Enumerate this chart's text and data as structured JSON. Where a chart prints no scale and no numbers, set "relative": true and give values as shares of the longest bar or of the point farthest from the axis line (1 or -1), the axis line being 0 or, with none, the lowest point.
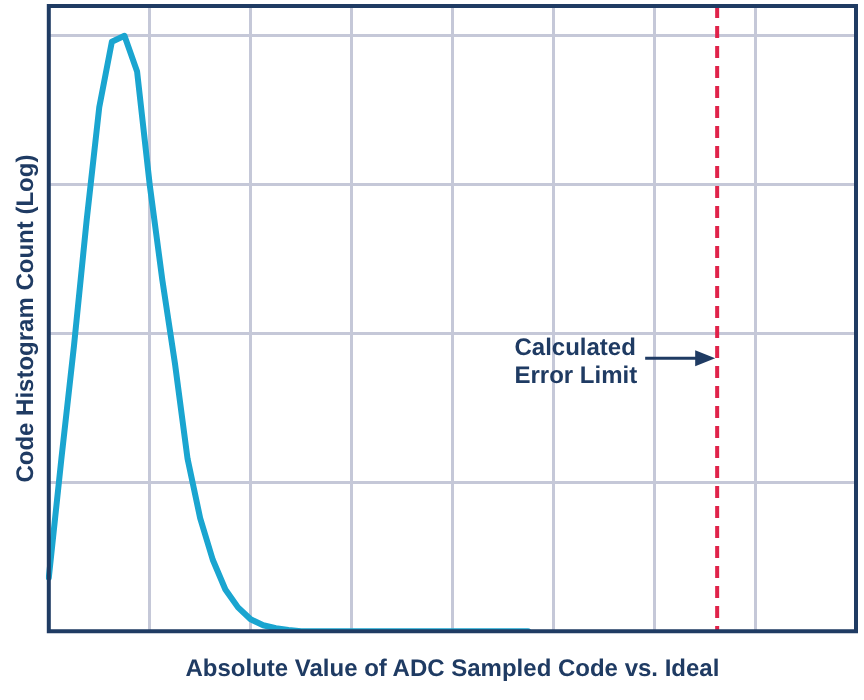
{
  "chart_data": {
    "type": "line",
    "xlabel": "Absolute Value of ADC Sampled Code vs. Ideal",
    "ylabel": "Code Histogram Count (Log)",
    "relative": true,
    "grid": true,
    "marker": "none",
    "line_style": "solid",
    "categories": [
      null,
      null,
      null,
      null,
      null,
      null,
      null,
      null,
      null,
      null,
      null,
      null,
      null,
      null,
      null,
      null,
      null,
      null,
      null,
      null,
      null,
      null,
      null,
      null,
      null,
      null,
      null,
      null,
      null,
      null,
      null,
      null,
      null,
      null,
      null,
      null,
      null,
      null,
      null,
      null,
      null,
      null,
      null,
      null,
      null,
      null,
      null,
      null,
      null,
      null,
      null,
      null,
      null,
      null,
      null,
      null,
      null,
      null,
      null,
      null,
      null,
      null,
      null,
      null,
      null
    ],
    "series": [
      {
        "color": "#1aa5d0",
        "values": [
          0.09,
          0.29,
          0.48,
          0.69,
          0.88,
          0.99,
          1,
          0.94,
          0.75,
          0.59,
          0.45,
          0.29,
          0.19,
          0.12,
          0.07,
          0.04,
          0.02,
          0.01,
          0.005,
          0.002,
          0,
          0,
          0,
          0,
          0,
          0,
          0,
          0,
          0,
          0,
          0,
          0,
          0,
          0,
          0,
          0,
          0,
          0,
          0,
          null,
          null,
          null,
          null,
          null,
          null,
          null,
          null,
          null,
          null,
          null,
          null,
          null,
          null,
          null,
          null,
          null,
          null,
          null,
          null,
          null,
          null,
          null,
          null,
          null,
          null
        ]
      }
    ],
    "annotations": [
      "Calculated\nError Limit"
    ]
  }
}
